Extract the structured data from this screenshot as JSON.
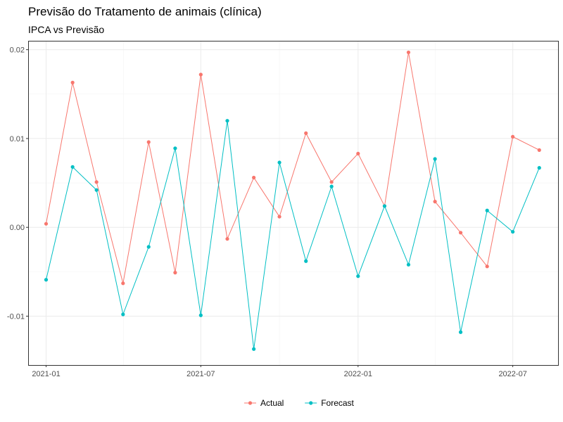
{
  "chart_data": {
    "type": "line",
    "title": "Previsão do Tratamento de animais (clínica)",
    "subtitle": "IPCA vs Previsão",
    "xlabel": "",
    "ylabel": "",
    "x": [
      "2021-01-01",
      "2021-02-01",
      "2021-03-01",
      "2021-04-01",
      "2021-05-01",
      "2021-06-01",
      "2021-07-01",
      "2021-08-01",
      "2021-09-01",
      "2021-10-01",
      "2021-11-01",
      "2021-12-01",
      "2022-01-01",
      "2022-02-01",
      "2022-03-01",
      "2022-04-01",
      "2022-05-01",
      "2022-06-01",
      "2022-07-01",
      "2022-08-01"
    ],
    "x_ticks": [
      {
        "date": "2021-01-01",
        "label": "2021-01"
      },
      {
        "date": "2021-07-01",
        "label": "2021-07"
      },
      {
        "date": "2022-01-01",
        "label": "2022-01"
      },
      {
        "date": "2022-07-01",
        "label": "2022-07"
      }
    ],
    "xlim": [
      "2020-12-11",
      "2022-08-23"
    ],
    "y_ticks": [
      {
        "value": -0.01,
        "label": "-0.01"
      },
      {
        "value": 0.0,
        "label": "0.00"
      },
      {
        "value": 0.01,
        "label": "0.01"
      },
      {
        "value": 0.02,
        "label": "0.02"
      }
    ],
    "ylim": [
      -0.0155,
      0.021
    ],
    "grid": true,
    "legend_position": "bottom",
    "series": [
      {
        "name": "Actual",
        "color": "#F8766D",
        "values": [
          0.0004,
          0.0163,
          0.0051,
          -0.0063,
          0.0096,
          -0.0051,
          0.0172,
          -0.0013,
          0.0056,
          0.0012,
          0.0106,
          0.0051,
          0.0083,
          0.0024,
          0.0197,
          0.0029,
          -0.0006,
          -0.0044,
          0.0102,
          0.0087
        ]
      },
      {
        "name": "Forecast",
        "color": "#00BFC4",
        "values": [
          -0.0059,
          0.0068,
          0.0042,
          -0.0098,
          -0.0022,
          0.0089,
          -0.0099,
          0.012,
          -0.0137,
          0.0073,
          -0.0038,
          0.0046,
          -0.0055,
          0.0024,
          -0.0042,
          0.0077,
          -0.0118,
          0.0019,
          -0.0005,
          0.0067
        ]
      }
    ]
  }
}
